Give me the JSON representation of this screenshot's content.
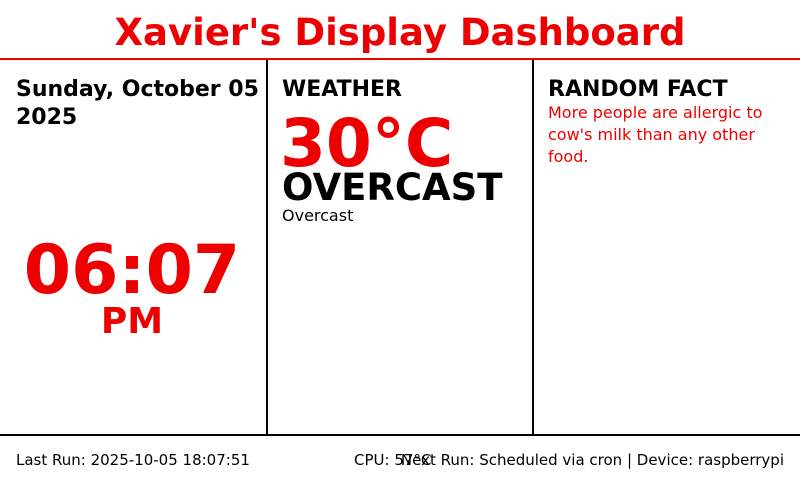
{
  "header": {
    "title": "Xavier's Display Dashboard"
  },
  "clock": {
    "date": "Sunday, October 05 2025",
    "time": "06:07",
    "ampm": "PM"
  },
  "weather": {
    "heading": "WEATHER",
    "temperature": "30°C",
    "condition": "OVERCAST",
    "description": "Overcast"
  },
  "fact": {
    "heading": "RANDOM FACT",
    "text": "More people are allergic to cow's milk than any other food."
  },
  "footer": {
    "last_run": "Last Run: 2025-10-05 18:07:51",
    "cpu_temp": "CPU: 57°C",
    "next_run": "Next Run: Scheduled via cron | Device: raspberrypi"
  },
  "colors": {
    "accent": "#ee0000",
    "text": "#000000",
    "background": "#ffffff"
  }
}
